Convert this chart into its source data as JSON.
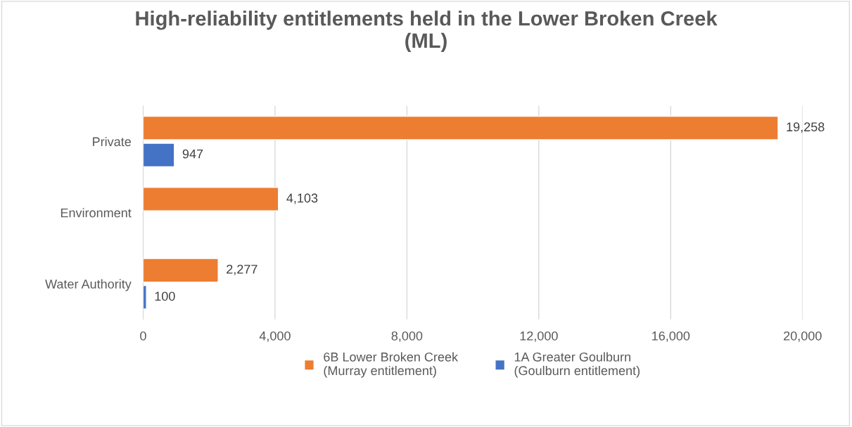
{
  "chart_data": {
    "type": "bar",
    "orientation": "horizontal",
    "title": "High-reliability entitlements held in the Lower Broken Creek\n(ML)",
    "categories": [
      "Private",
      "Environment",
      "Water Authority"
    ],
    "series": [
      {
        "name": "6B Lower Broken Creek\n(Murray entitlement)",
        "color": "#ed7d31",
        "values": [
          19258,
          4103,
          2277
        ],
        "value_labels": [
          "19,258",
          "4,103",
          "2,277"
        ]
      },
      {
        "name": "1A Greater Goulburn\n(Goulburn entitlement)",
        "color": "#4472c4",
        "values": [
          947,
          null,
          100
        ],
        "value_labels": [
          "947",
          null,
          "100"
        ]
      }
    ],
    "xlim": [
      0,
      20000
    ],
    "xticks": [
      {
        "value": 0,
        "label": "0"
      },
      {
        "value": 4000,
        "label": "4,000"
      },
      {
        "value": 8000,
        "label": "8,000"
      },
      {
        "value": 12000,
        "label": "12,000"
      },
      {
        "value": 16000,
        "label": "16,000"
      },
      {
        "value": 20000,
        "label": "20,000"
      }
    ],
    "grid": "x",
    "legend": "bottom"
  }
}
